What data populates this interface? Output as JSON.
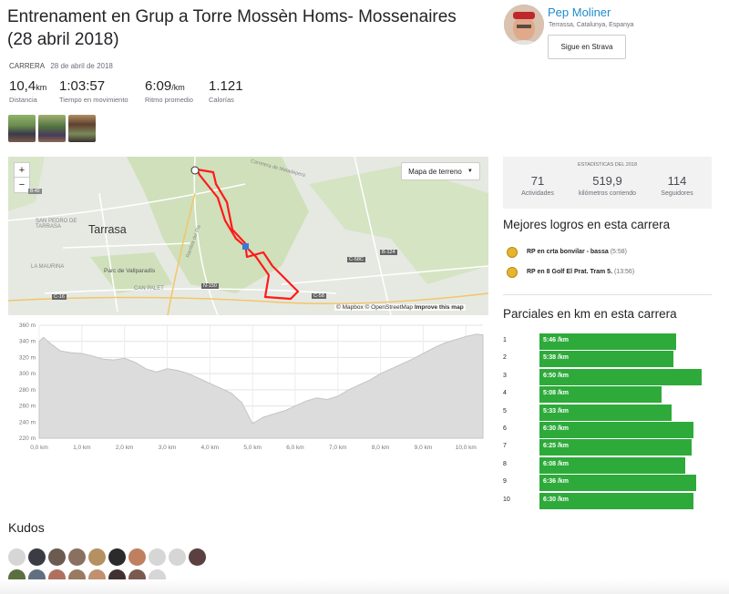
{
  "activity": {
    "title": "Entrenament en Grup a Torre Mossèn Homs- Mossenaires (28 abril 2018)",
    "type": "Carrera",
    "date": "28 de abril de 2018",
    "stats": [
      {
        "value": "10,4",
        "unit": "km",
        "label": "Distancia"
      },
      {
        "value": "1:03:57",
        "unit": "",
        "label": "Tiempo en movimiento"
      },
      {
        "value": "6:09",
        "unit": "/km",
        "label": "Ritmo promedio"
      },
      {
        "value": "1.121",
        "unit": "",
        "label": "Calorías"
      }
    ],
    "photos": [
      "activity-photo-1",
      "activity-photo-2",
      "activity-photo-3"
    ]
  },
  "map": {
    "zoom_in": "+",
    "zoom_out": "−",
    "layer_button": "Mapa de terreno",
    "places": [
      "Tarrasa",
      "SAN PEDRO DE TARRASA",
      "Parc de Vallparadís",
      "LA MAURINA",
      "CAN PALET",
      "Carretera de Matadepera",
      "Rambla del Pla"
    ],
    "roads": [
      "C-16",
      "C-58",
      "N-150",
      "B-124",
      "C-58C",
      "B-40"
    ],
    "attribution": {
      "mapbox": "© Mapbox",
      "osm": "© OpenStreetMap",
      "improve": "Improve this map"
    }
  },
  "chart_data": {
    "type": "area",
    "title": "",
    "xlabel": "",
    "ylabel": "",
    "x_unit": "km",
    "y_unit": "m",
    "xlim": [
      0,
      10.4
    ],
    "ylim": [
      220,
      360
    ],
    "x_ticks": [
      "0,0 km",
      "1,0 km",
      "2,0 km",
      "3,0 km",
      "4,0 km",
      "5,0 km",
      "6,0 km",
      "7,0 km",
      "8,0 km",
      "9,0 km",
      "10,0 km"
    ],
    "y_ticks": [
      "360 m",
      "340 m",
      "320 m",
      "300 m",
      "280 m",
      "260 m",
      "240 m",
      "220 m"
    ],
    "x": [
      0,
      0.1,
      0.25,
      0.5,
      0.75,
      1.0,
      1.25,
      1.5,
      1.75,
      2.0,
      2.25,
      2.5,
      2.75,
      3.0,
      3.25,
      3.5,
      3.75,
      4.0,
      4.25,
      4.5,
      4.75,
      5.0,
      5.25,
      5.5,
      5.75,
      6.0,
      6.25,
      6.5,
      6.75,
      7.0,
      7.25,
      7.5,
      7.75,
      8.0,
      8.25,
      8.5,
      8.75,
      9.0,
      9.25,
      9.5,
      9.75,
      10.0,
      10.25,
      10.4
    ],
    "values": [
      340,
      345,
      338,
      328,
      326,
      325,
      322,
      318,
      317,
      319,
      314,
      306,
      302,
      306,
      304,
      300,
      294,
      288,
      282,
      276,
      264,
      238,
      246,
      250,
      254,
      260,
      266,
      270,
      268,
      272,
      280,
      286,
      292,
      300,
      306,
      312,
      318,
      325,
      332,
      338,
      342,
      346,
      349,
      348
    ],
    "grid": true,
    "fill_color": "#dcdcdc"
  },
  "athlete": {
    "name": "Pep Moliner",
    "location": "Terrassa, Catalunya, Espanya",
    "follow_button": "Sigue en Strava"
  },
  "year_stats": {
    "header": "Estadísticas del 2018",
    "items": [
      {
        "value": "71",
        "label": "Actividades"
      },
      {
        "value": "519,9",
        "label": "kilómetros corriendo"
      },
      {
        "value": "114",
        "label": "Seguidores"
      }
    ]
  },
  "achievements": {
    "title": "Mejores logros en esta carrera",
    "items": [
      {
        "text": "RP en crta bonvilar - bassa",
        "time": "(5:58)"
      },
      {
        "text": "RP en 8 Golf El Prat. Tram 5.",
        "time": "(13:56)"
      }
    ]
  },
  "splits": {
    "title": "Parciales en km en esta carrera",
    "colors": {
      "bar": "#2eaa3b"
    },
    "items": [
      {
        "km": "1",
        "pace": "5:46 /km",
        "seconds": 346
      },
      {
        "km": "2",
        "pace": "5:38 /km",
        "seconds": 338
      },
      {
        "km": "3",
        "pace": "6:50 /km",
        "seconds": 410
      },
      {
        "km": "4",
        "pace": "5:08 /km",
        "seconds": 308
      },
      {
        "km": "5",
        "pace": "5:33 /km",
        "seconds": 333
      },
      {
        "km": "6",
        "pace": "6:30 /km",
        "seconds": 390
      },
      {
        "km": "7",
        "pace": "6:25 /km",
        "seconds": 385
      },
      {
        "km": "8",
        "pace": "6:08 /km",
        "seconds": 368
      },
      {
        "km": "9",
        "pace": "6:36 /km",
        "seconds": 396
      },
      {
        "km": "10",
        "pace": "6:30 /km",
        "seconds": 390
      }
    ]
  },
  "kudos": {
    "title": "Kudos",
    "rows": [
      [
        "#d6d6d6",
        "#3b3b44",
        "#6b5b50",
        "#8a7060",
        "#b59060",
        "#2b2b2b",
        "#c08060",
        "#d6d6d6",
        "#d6d6d6",
        "#5a4040"
      ],
      [
        "#5a7040",
        "#607080",
        "#b07060",
        "#9a7a60",
        "#c09070",
        "#403030",
        "#7a5a50",
        "#d6d6d6"
      ]
    ]
  }
}
